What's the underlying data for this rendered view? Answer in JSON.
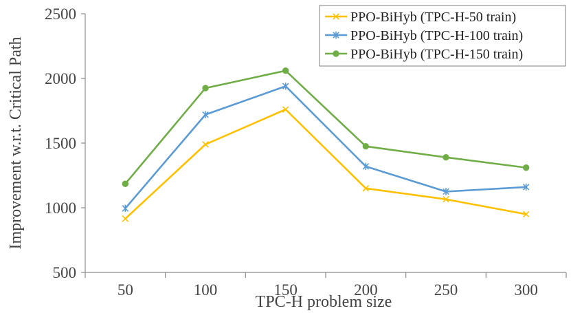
{
  "chart_data": {
    "type": "line",
    "title": "",
    "xlabel": "TPC-H problem size",
    "ylabel": "Improvement w.r.t. Critical Path",
    "categories": [
      "50",
      "100",
      "150",
      "200",
      "250",
      "300"
    ],
    "ylim": [
      500,
      2500
    ],
    "yticks": [
      500,
      1000,
      1500,
      2000,
      2500
    ],
    "grid": false,
    "legend_position": "top-right",
    "series": [
      {
        "name": "PPO-BiHyb (TPC-H-50 train)",
        "color": "#FFC000",
        "marker": "x",
        "values": [
          915,
          1490,
          1760,
          1150,
          1065,
          950
        ]
      },
      {
        "name": "PPO-BiHyb (TPC-H-100 train)",
        "color": "#5B9BD5",
        "marker": "star",
        "values": [
          995,
          1720,
          1940,
          1320,
          1125,
          1160
        ]
      },
      {
        "name": "PPO-BiHyb (TPC-H-150 train)",
        "color": "#70AD47",
        "marker": "circle",
        "values": [
          1185,
          1925,
          2060,
          1475,
          1390,
          1310
        ]
      }
    ]
  }
}
